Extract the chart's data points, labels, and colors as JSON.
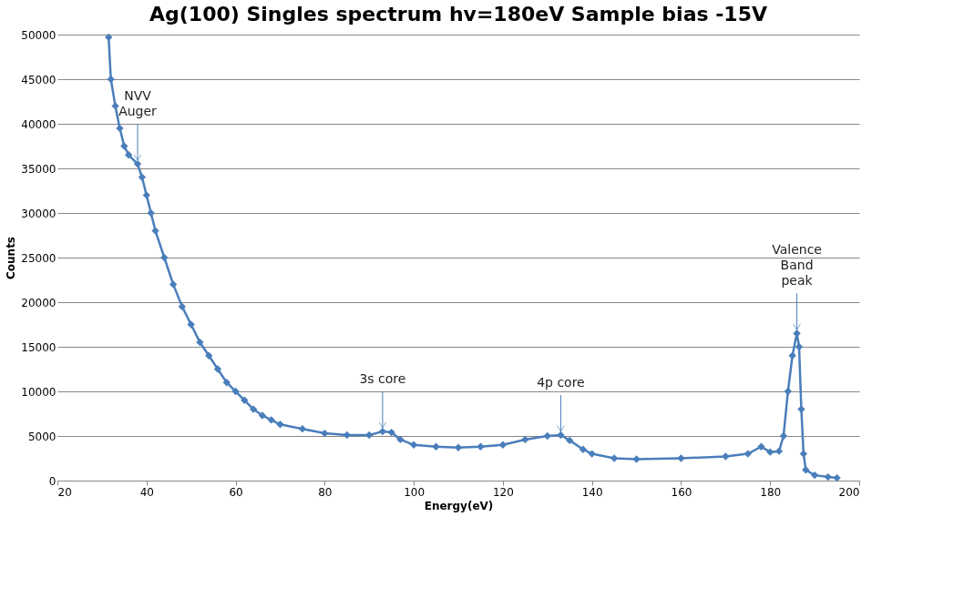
{
  "chart_data": {
    "type": "line",
    "title": "Ag(100) Singles spectrum hv=180eV Sample bias -15V",
    "xlabel": "Energy(eV)",
    "ylabel": "Counts",
    "series": [
      {
        "color": "#4a7ebb",
        "x": [
          31.5,
          32,
          33,
          34,
          35,
          36,
          38,
          39,
          40,
          41,
          42,
          44,
          46,
          48,
          50,
          52,
          54,
          56,
          58,
          60,
          62,
          64,
          66,
          68,
          70,
          75,
          80,
          85,
          90,
          93,
          95,
          97,
          100,
          105,
          110,
          115,
          120,
          125,
          130,
          133,
          135,
          138,
          140,
          145,
          150,
          160,
          170,
          175,
          178,
          180,
          182,
          183,
          184,
          185,
          186,
          186.5,
          187,
          187.5,
          188,
          190,
          193,
          195
        ],
        "values": [
          49700,
          45000,
          42000,
          39500,
          37500,
          36500,
          35500,
          34000,
          32000,
          30000,
          28000,
          25000,
          22000,
          19500,
          17500,
          15500,
          14000,
          12500,
          11000,
          10000,
          9000,
          8000,
          7300,
          6800,
          6300,
          5800,
          5300,
          5100,
          5100,
          5500,
          5400,
          4600,
          4000,
          3800,
          3700,
          3800,
          4000,
          4600,
          5000,
          5100,
          4500,
          3500,
          3000,
          2500,
          2400,
          2500,
          2700,
          3000,
          3800,
          3200,
          3300,
          5000,
          10000,
          14000,
          16500,
          15000,
          8000,
          3000,
          1200,
          600,
          400,
          300
        ]
      }
    ],
    "xlim": [
      20,
      200
    ],
    "xticks": [
      20,
      40,
      60,
      80,
      100,
      120,
      140,
      160,
      180,
      200
    ],
    "ylim": [
      0,
      50000
    ],
    "yticks": [
      0,
      5000,
      10000,
      15000,
      20000,
      25000,
      30000,
      35000,
      40000,
      45000,
      50000
    ],
    "grid": "y",
    "marker": "diamond",
    "line_style": "solid",
    "annotations": [
      {
        "text": "NVV\nAuger",
        "x": 38,
        "y": 35500
      },
      {
        "text": "3s core",
        "x": 93,
        "y": 5500
      },
      {
        "text": "4p core",
        "x": 133,
        "y": 5100
      },
      {
        "text": "Valence\nBand\npeak",
        "x": 186,
        "y": 16500
      }
    ]
  }
}
